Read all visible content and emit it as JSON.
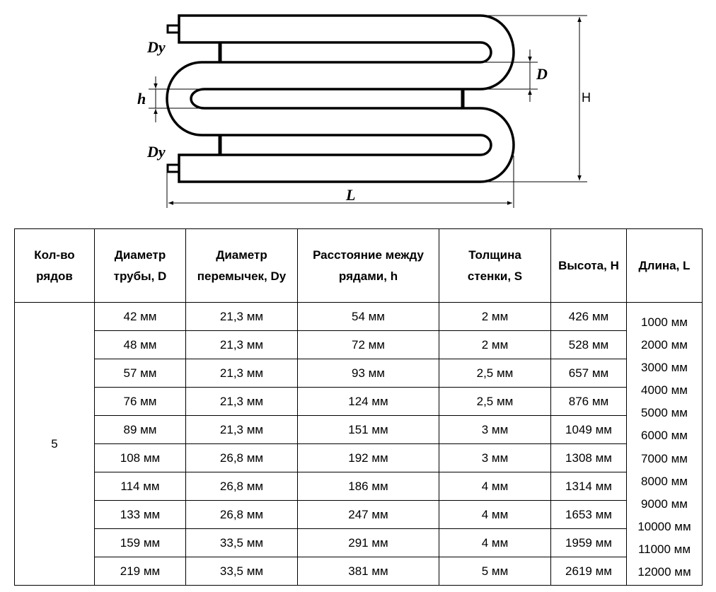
{
  "diagram": {
    "labels": {
      "dy_top": "Dy",
      "dy_bottom": "Dy",
      "d": "D",
      "h": "h",
      "height": "H",
      "length": "L"
    }
  },
  "table": {
    "headers": [
      [
        "Кол-во",
        "рядов"
      ],
      [
        "Диаметр",
        "трубы, D"
      ],
      [
        "Диаметр",
        "перемычек, Dy"
      ],
      [
        "Расстояние между",
        "рядами, h"
      ],
      [
        "Толщина",
        "стенки, S"
      ],
      [
        "Высота, H"
      ],
      [
        "Длина, L"
      ]
    ],
    "rows_count": "5",
    "rows": [
      [
        "42 мм",
        "21,3 мм",
        "54 мм",
        "2 мм",
        "426 мм"
      ],
      [
        "48 мм",
        "21,3 мм",
        "72 мм",
        "2 мм",
        "528 мм"
      ],
      [
        "57 мм",
        "21,3 мм",
        "93 мм",
        "2,5 мм",
        "657 мм"
      ],
      [
        "76 мм",
        "21,3 мм",
        "124 мм",
        "2,5 мм",
        "876 мм"
      ],
      [
        "89 мм",
        "21,3 мм",
        "151 мм",
        "3 мм",
        "1049 мм"
      ],
      [
        "108 мм",
        "26,8 мм",
        "192 мм",
        "3 мм",
        "1308 мм"
      ],
      [
        "114 мм",
        "26,8 мм",
        "186 мм",
        "4 мм",
        "1314 мм"
      ],
      [
        "133 мм",
        "26,8 мм",
        "247 мм",
        "4 мм",
        "1653 мм"
      ],
      [
        "159 мм",
        "33,5 мм",
        "291 мм",
        "4 мм",
        "1959 мм"
      ],
      [
        "219 мм",
        "33,5 мм",
        "381 мм",
        "5 мм",
        "2619 мм"
      ]
    ],
    "lengths": [
      "1000 мм",
      "2000 мм",
      "3000 мм",
      "4000 мм",
      "5000 мм",
      "6000 мм",
      "7000 мм",
      "8000 мм",
      "9000 мм",
      "10000 мм",
      "11000 мм",
      "12000 мм"
    ]
  }
}
